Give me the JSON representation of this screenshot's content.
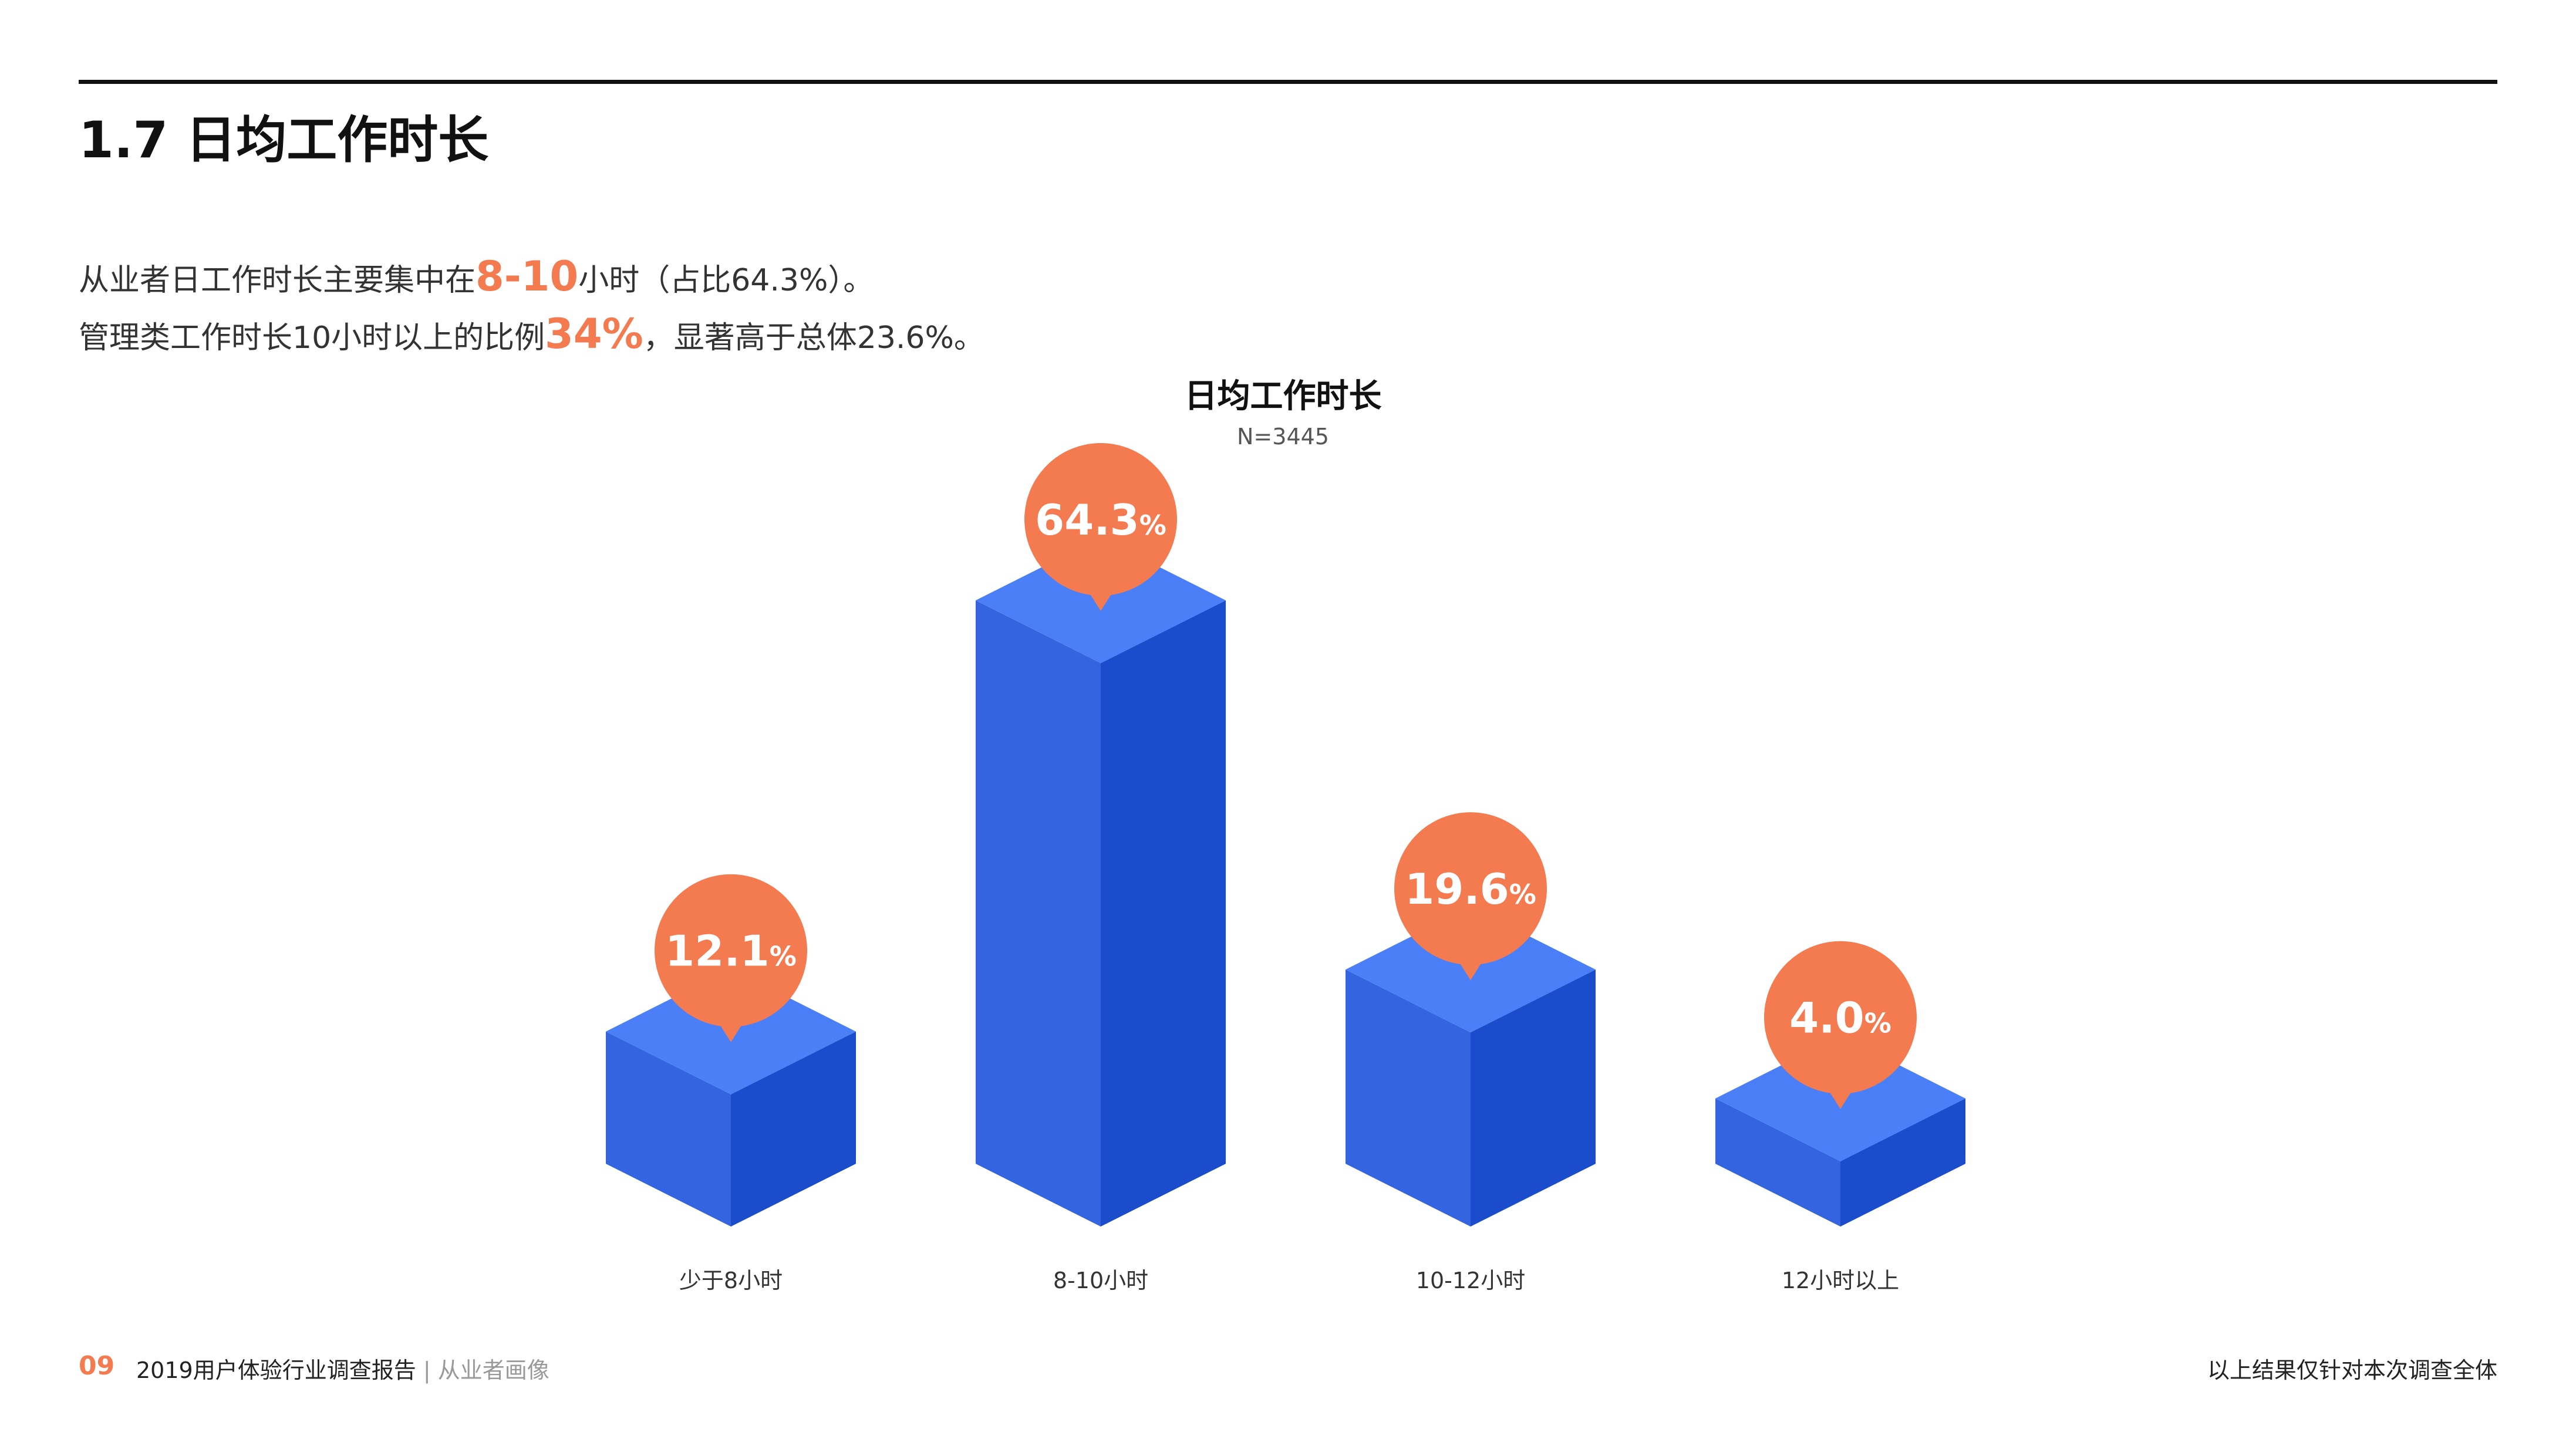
{
  "header": {
    "title": "1.7 日均工作时长"
  },
  "summary": {
    "line1": {
      "pre": "从业者日工作时长主要集中在",
      "highlight": "8-10",
      "post": "小时（占比64.3%）。"
    },
    "line2": {
      "pre": "管理类工作时长10小时以上的比例",
      "highlight": "34%",
      "post": "，显著高于总体23.6%。"
    }
  },
  "chart_data": {
    "type": "bar",
    "title": "日均工作时长",
    "subtitle": "N=3445",
    "categories": [
      "少于8小时",
      "8-10小时",
      "10-12小时",
      "12小时以上"
    ],
    "values": [
      12.1,
      64.3,
      19.6,
      4.0
    ],
    "value_labels": [
      "12.1",
      "64.3",
      "19.6",
      "4.0"
    ],
    "unit": "%",
    "colors": {
      "bar_top": "#4a7ff7",
      "bar_left": "#3464e0",
      "bar_right": "#1a4ccc",
      "label_bubble": "#f47a4f",
      "label_text": "#ffffff"
    }
  },
  "footer": {
    "page_number": "09",
    "report_title": "2019用户体验行业调查报告",
    "separator": "|",
    "section": "从业者画像",
    "note": "以上结果仅针对本次调查全体"
  }
}
